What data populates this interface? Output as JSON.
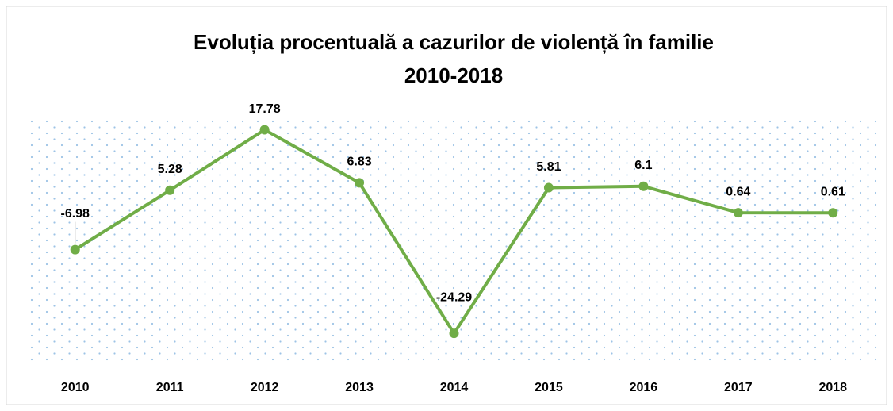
{
  "chart_data": {
    "type": "line",
    "title": [
      "Evoluția procentuală a cazurilor de violență în familie",
      "2010-2018"
    ],
    "categories": [
      "2010",
      "2011",
      "2012",
      "2013",
      "2014",
      "2015",
      "2016",
      "2017",
      "2018"
    ],
    "values": [
      -6.98,
      5.28,
      17.78,
      6.83,
      -24.29,
      5.81,
      6.1,
      0.64,
      0.61
    ],
    "color": "#70ad47",
    "ylim": [
      -30,
      20
    ]
  }
}
